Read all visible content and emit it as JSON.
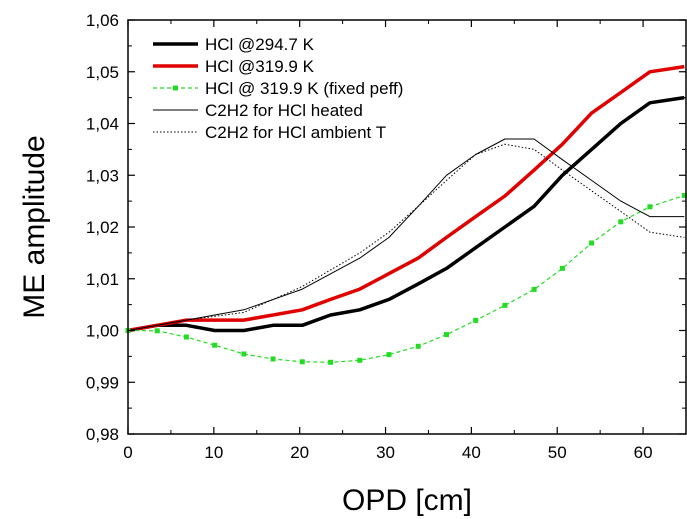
{
  "chart_data": {
    "type": "line",
    "title": "",
    "xlabel": "OPD [cm]",
    "ylabel": "ME amplitude",
    "xlim": [
      0,
      65
    ],
    "ylim": [
      0.98,
      1.06
    ],
    "xticks": [
      0,
      10,
      20,
      30,
      40,
      50,
      60
    ],
    "xtick_labels": [
      "0",
      "10",
      "20",
      "30",
      "40",
      "50",
      "60"
    ],
    "yticks": [
      0.98,
      0.99,
      1.0,
      1.01,
      1.02,
      1.03,
      1.04,
      1.05,
      1.06
    ],
    "ytick_labels": [
      "0,98",
      "0,99",
      "1,00",
      "1,01",
      "1,02",
      "1,03",
      "1,04",
      "1,05",
      "1,06"
    ],
    "grid": false,
    "legend_position": "top-left",
    "series": [
      {
        "name": "HCl @294.7 K",
        "color": "#000000",
        "style": "thick-solid",
        "x": [
          0,
          3.4,
          6.8,
          10.1,
          13.5,
          16.9,
          20.3,
          23.6,
          27.0,
          30.4,
          33.8,
          37.1,
          40.5,
          43.9,
          47.3,
          50.6,
          54.0,
          57.4,
          60.8,
          64.8
        ],
        "y": [
          1.0,
          1.001,
          1.001,
          1.0,
          1.0,
          1.001,
          1.001,
          1.003,
          1.004,
          1.006,
          1.009,
          1.012,
          1.016,
          1.02,
          1.024,
          1.03,
          1.035,
          1.04,
          1.044,
          1.045
        ]
      },
      {
        "name": "HCl @319.9 K",
        "color": "#e00000",
        "style": "thick-solid",
        "x": [
          0,
          3.4,
          6.8,
          10.1,
          13.5,
          16.9,
          20.3,
          23.6,
          27.0,
          30.4,
          33.8,
          37.1,
          40.5,
          43.9,
          47.3,
          50.6,
          54.0,
          57.4,
          60.8,
          64.8
        ],
        "y": [
          1.0,
          1.001,
          1.002,
          1.002,
          1.002,
          1.003,
          1.004,
          1.006,
          1.008,
          1.011,
          1.014,
          1.018,
          1.022,
          1.026,
          1.031,
          1.036,
          1.042,
          1.046,
          1.05,
          1.051
        ]
      },
      {
        "name": "HCl @ 319.9 K (fixed peff)",
        "color": "#22dd22",
        "style": "dashed-square-markers",
        "x": [
          0,
          3.4,
          6.8,
          10.1,
          13.5,
          16.9,
          20.3,
          23.6,
          27.0,
          30.4,
          33.8,
          37.1,
          40.5,
          43.9,
          47.3,
          50.6,
          54.0,
          57.4,
          60.8,
          64.8
        ],
        "y": [
          1.0,
          0.99995,
          0.99875,
          0.99715,
          0.99545,
          0.9945,
          0.99395,
          0.99385,
          0.99425,
          0.99535,
          0.99695,
          0.9992,
          1.00195,
          1.00485,
          1.00795,
          1.012,
          1.0169,
          1.021,
          1.0239,
          1.0261
        ]
      },
      {
        "name": "C2H2 for HCl heated",
        "color": "#000000",
        "style": "thin-solid",
        "x": [
          0,
          6.8,
          13.5,
          20.3,
          27.0,
          30.4,
          33.8,
          37.1,
          40.5,
          43.9,
          47.3,
          50.6,
          54.0,
          57.4,
          60.8,
          64.8
        ],
        "y": [
          1.0,
          1.002,
          1.004,
          1.008,
          1.014,
          1.018,
          1.024,
          1.03,
          1.034,
          1.037,
          1.037,
          1.033,
          1.029,
          1.025,
          1.022,
          1.022
        ]
      },
      {
        "name": "C2H2 for HCl ambient T",
        "color": "#000000",
        "style": "dotted",
        "x": [
          0,
          6.8,
          13.5,
          20.3,
          27.0,
          30.4,
          33.8,
          37.1,
          40.5,
          43.9,
          47.3,
          50.6,
          54.0,
          57.4,
          60.8,
          64.8
        ],
        "y": [
          1.0,
          1.002,
          1.0035,
          1.0085,
          1.015,
          1.019,
          1.024,
          1.029,
          1.034,
          1.036,
          1.035,
          1.031,
          1.027,
          1.023,
          1.019,
          1.018
        ]
      }
    ]
  }
}
